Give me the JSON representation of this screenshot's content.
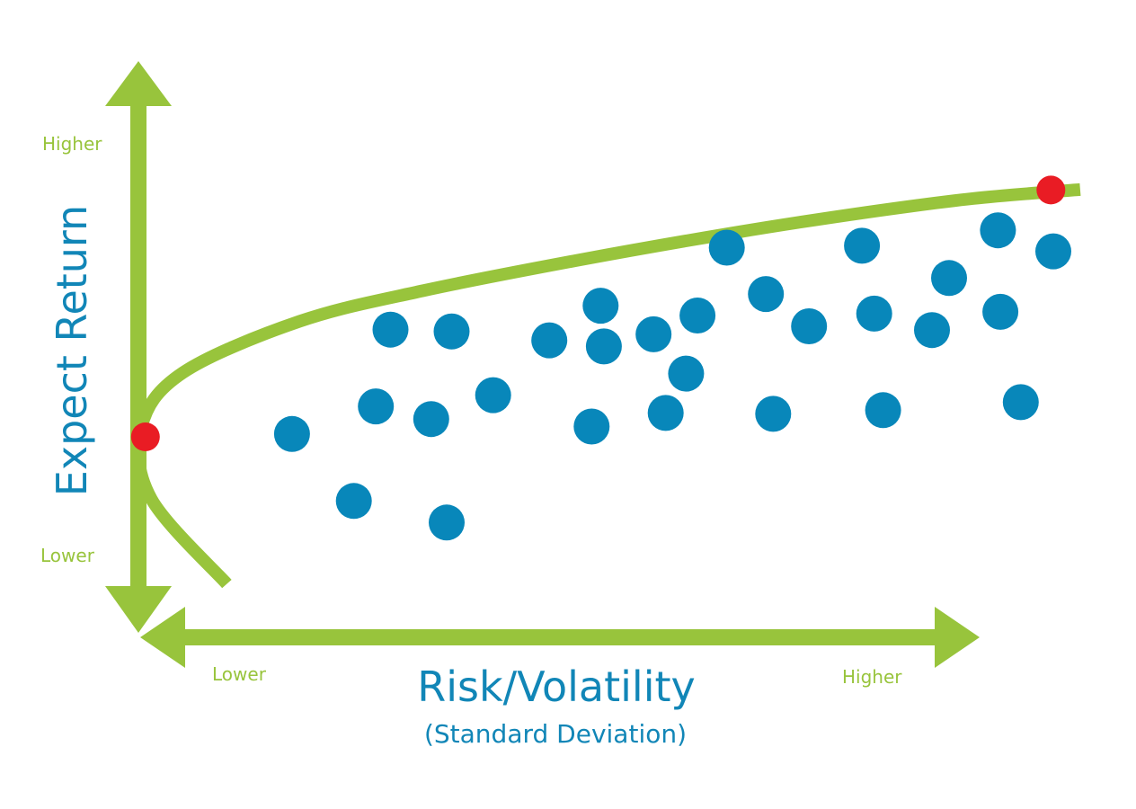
{
  "colors": {
    "axis": "#98c43c",
    "dot": "#0887ba",
    "endpoint": "#e91c24",
    "text_blue": "#1186b7",
    "text_green": "#98c43c"
  },
  "y_axis": {
    "title": "Expect Return",
    "high_label": "Higher",
    "low_label": "Lower"
  },
  "x_axis": {
    "title": "Risk/Volatility",
    "subtitle": "(Standard Deviation)",
    "low_label": "Lower",
    "high_label": "Higher"
  },
  "chart_data": {
    "type": "scatter",
    "xlabel": "Risk/Volatility",
    "xsublabel": "(Standard Deviation)",
    "ylabel": "Expect Return",
    "x_ticks": [
      "Lower",
      "Higher"
    ],
    "y_ticks": [
      "Higher",
      "Lower"
    ],
    "points": [
      {
        "risk": 0.065,
        "return": 0.365
      },
      {
        "risk": 0.141,
        "return": 0.222
      },
      {
        "risk": 0.186,
        "return": 0.588
      },
      {
        "risk": 0.168,
        "return": 0.424
      },
      {
        "risk": 0.236,
        "return": 0.397
      },
      {
        "risk": 0.261,
        "return": 0.584
      },
      {
        "risk": 0.255,
        "return": 0.176
      },
      {
        "risk": 0.312,
        "return": 0.448
      },
      {
        "risk": 0.381,
        "return": 0.565
      },
      {
        "risk": 0.444,
        "return": 0.639
      },
      {
        "risk": 0.448,
        "return": 0.552
      },
      {
        "risk": 0.433,
        "return": 0.381
      },
      {
        "risk": 0.509,
        "return": 0.578
      },
      {
        "risk": 0.524,
        "return": 0.41
      },
      {
        "risk": 0.549,
        "return": 0.494
      },
      {
        "risk": 0.563,
        "return": 0.618
      },
      {
        "risk": 0.599,
        "return": 0.763
      },
      {
        "risk": 0.647,
        "return": 0.664
      },
      {
        "risk": 0.656,
        "return": 0.408
      },
      {
        "risk": 0.7,
        "return": 0.595
      },
      {
        "risk": 0.765,
        "return": 0.767
      },
      {
        "risk": 0.78,
        "return": 0.622
      },
      {
        "risk": 0.791,
        "return": 0.416
      },
      {
        "risk": 0.851,
        "return": 0.587
      },
      {
        "risk": 0.872,
        "return": 0.698
      },
      {
        "risk": 0.932,
        "return": 0.8
      },
      {
        "risk": 0.935,
        "return": 0.626
      },
      {
        "risk": 0.96,
        "return": 0.433
      },
      {
        "risk": 1.0,
        "return": 0.755
      }
    ],
    "frontier": {
      "type": "line",
      "curve": [
        {
          "risk": -0.015,
          "return": 0.045
        },
        {
          "risk": -0.108,
          "return": 0.227
        },
        {
          "risk": -0.12,
          "return": 0.379
        },
        {
          "risk": -0.069,
          "return": 0.496
        },
        {
          "risk": 0.075,
          "return": 0.606
        },
        {
          "risk": 0.226,
          "return": 0.671
        },
        {
          "risk": 0.419,
          "return": 0.737
        },
        {
          "risk": 0.612,
          "return": 0.796
        },
        {
          "risk": 0.769,
          "return": 0.838
        },
        {
          "risk": 0.902,
          "return": 0.868
        },
        {
          "risk": 1.033,
          "return": 0.887
        }
      ],
      "endpoints": [
        {
          "risk": -0.115,
          "return": 0.359
        },
        {
          "risk": 0.997,
          "return": 0.886
        }
      ]
    }
  }
}
